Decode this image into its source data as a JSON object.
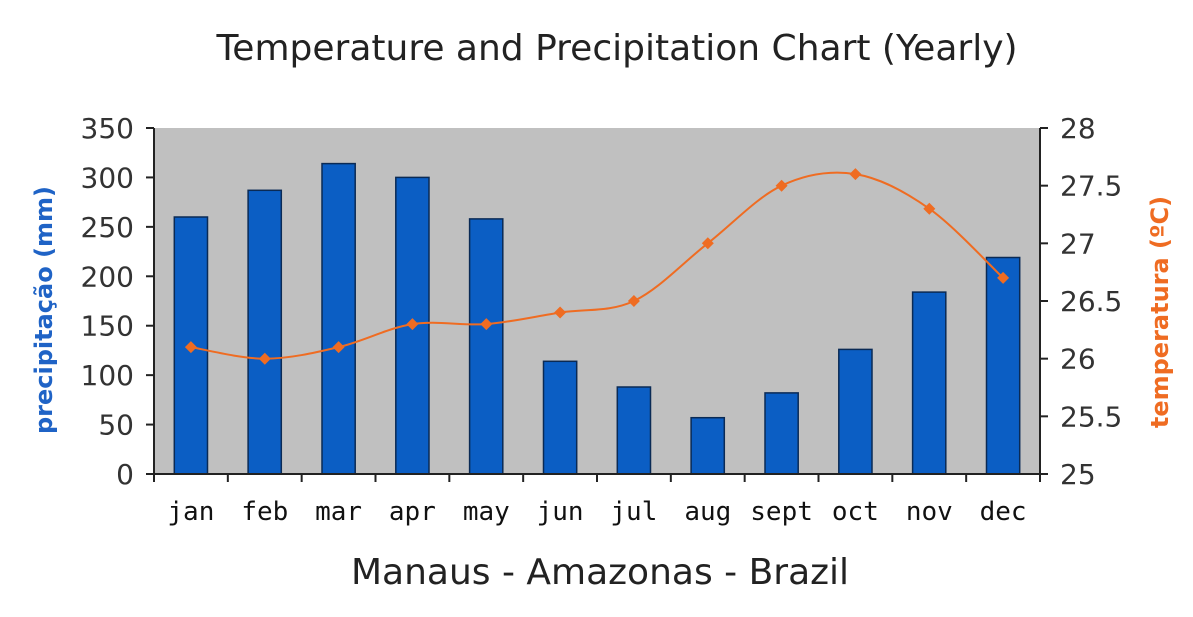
{
  "chart_data": {
    "type": "bar+line",
    "title": "Temperature and Precipitation Chart (Yearly)",
    "subtitle": "Manaus - Amazonas - Brazil",
    "categories": [
      "jan",
      "feb",
      "mar",
      "apr",
      "may",
      "jun",
      "jul",
      "aug",
      "sept",
      "oct",
      "nov",
      "dec"
    ],
    "series": [
      {
        "kind": "bar",
        "axis": "left",
        "color": "#0b5ec4",
        "values": [
          260,
          287,
          314,
          300,
          258,
          114,
          88,
          57,
          82,
          126,
          184,
          219
        ]
      },
      {
        "kind": "line",
        "axis": "right",
        "color": "#ef6c22",
        "values": [
          26.1,
          26.0,
          26.1,
          26.3,
          26.3,
          26.4,
          26.5,
          27.0,
          27.5,
          27.6,
          27.3,
          26.7
        ]
      }
    ],
    "ylabel_left": "precipitação (mm)",
    "ylabel_right": "temperatura (ºC)",
    "ylim_left": [
      0,
      350
    ],
    "ylim_right": [
      25,
      28
    ],
    "yticks_left": [
      "0",
      "50",
      "100",
      "150",
      "200",
      "250",
      "300",
      "350"
    ],
    "yticks_right": [
      "25",
      "25.5",
      "26",
      "26.5",
      "27",
      "27.5",
      "28"
    ],
    "plot_background": "#c0c0c0",
    "grid": false,
    "legend": "none"
  }
}
